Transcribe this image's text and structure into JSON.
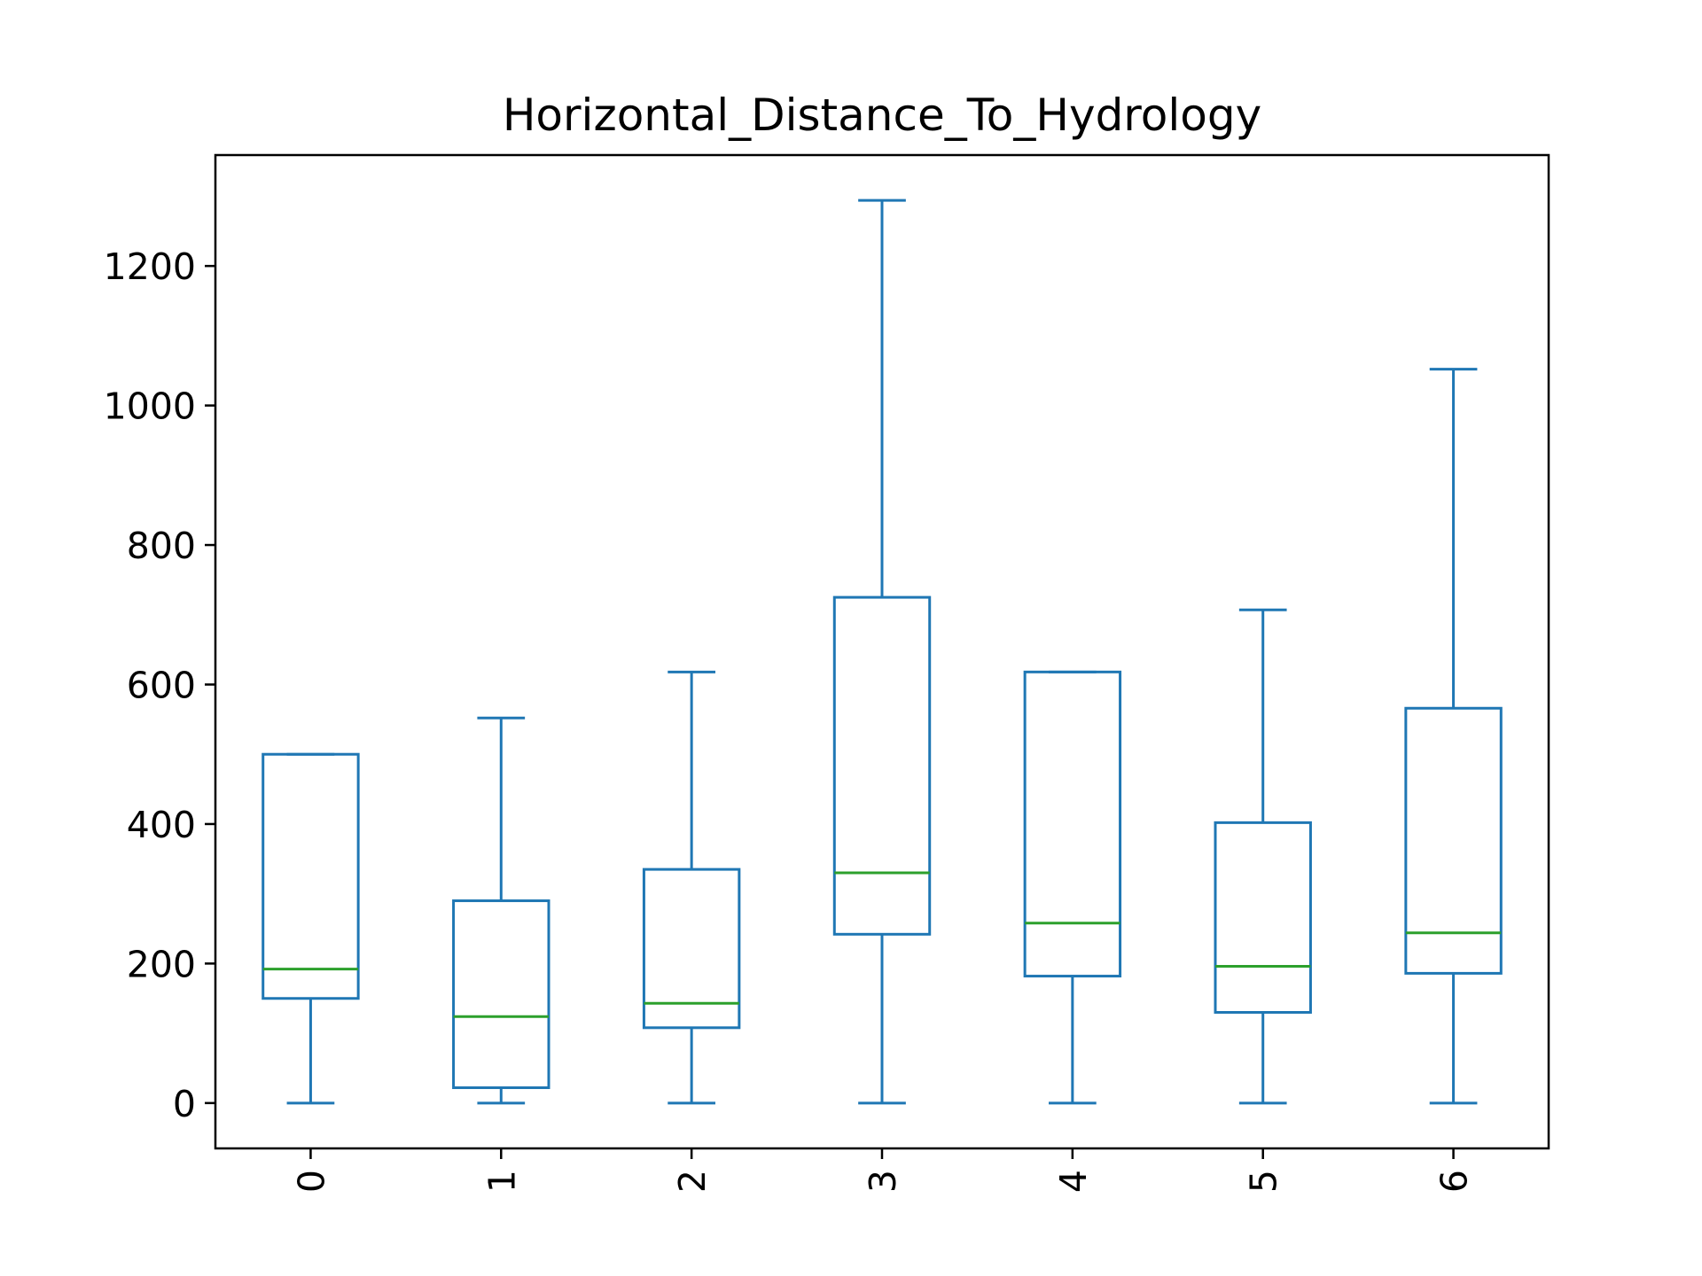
{
  "chart_data": {
    "type": "box",
    "title": "Horizontal_Distance_To_Hydrology",
    "xlabel": "",
    "ylabel": "",
    "categories": [
      "0",
      "1",
      "2",
      "3",
      "4",
      "5",
      "6"
    ],
    "boxes": [
      {
        "category": "0",
        "whisker_low": 0,
        "q1": 150,
        "median": 192,
        "q3": 500,
        "whisker_high": 500
      },
      {
        "category": "1",
        "whisker_low": 0,
        "q1": 22,
        "median": 124,
        "q3": 290,
        "whisker_high": 552
      },
      {
        "category": "2",
        "whisker_low": 0,
        "q1": 108,
        "median": 143,
        "q3": 335,
        "whisker_high": 618
      },
      {
        "category": "3",
        "whisker_low": 0,
        "q1": 242,
        "median": 330,
        "q3": 725,
        "whisker_high": 1294
      },
      {
        "category": "4",
        "whisker_low": 0,
        "q1": 182,
        "median": 258,
        "q3": 618,
        "whisker_high": 618
      },
      {
        "category": "5",
        "whisker_low": 0,
        "q1": 130,
        "median": 196,
        "q3": 402,
        "whisker_high": 707
      },
      {
        "category": "6",
        "whisker_low": 0,
        "q1": 186,
        "median": 244,
        "q3": 566,
        "whisker_high": 1052
      }
    ],
    "y_ticks": [
      0,
      200,
      400,
      600,
      800,
      1000,
      1200
    ],
    "ylim": [
      -65,
      1359
    ],
    "grid": false,
    "legend": "none",
    "colors": {
      "box": "#1f77b4",
      "median": "#2ca02c",
      "axes": "#000000"
    }
  }
}
